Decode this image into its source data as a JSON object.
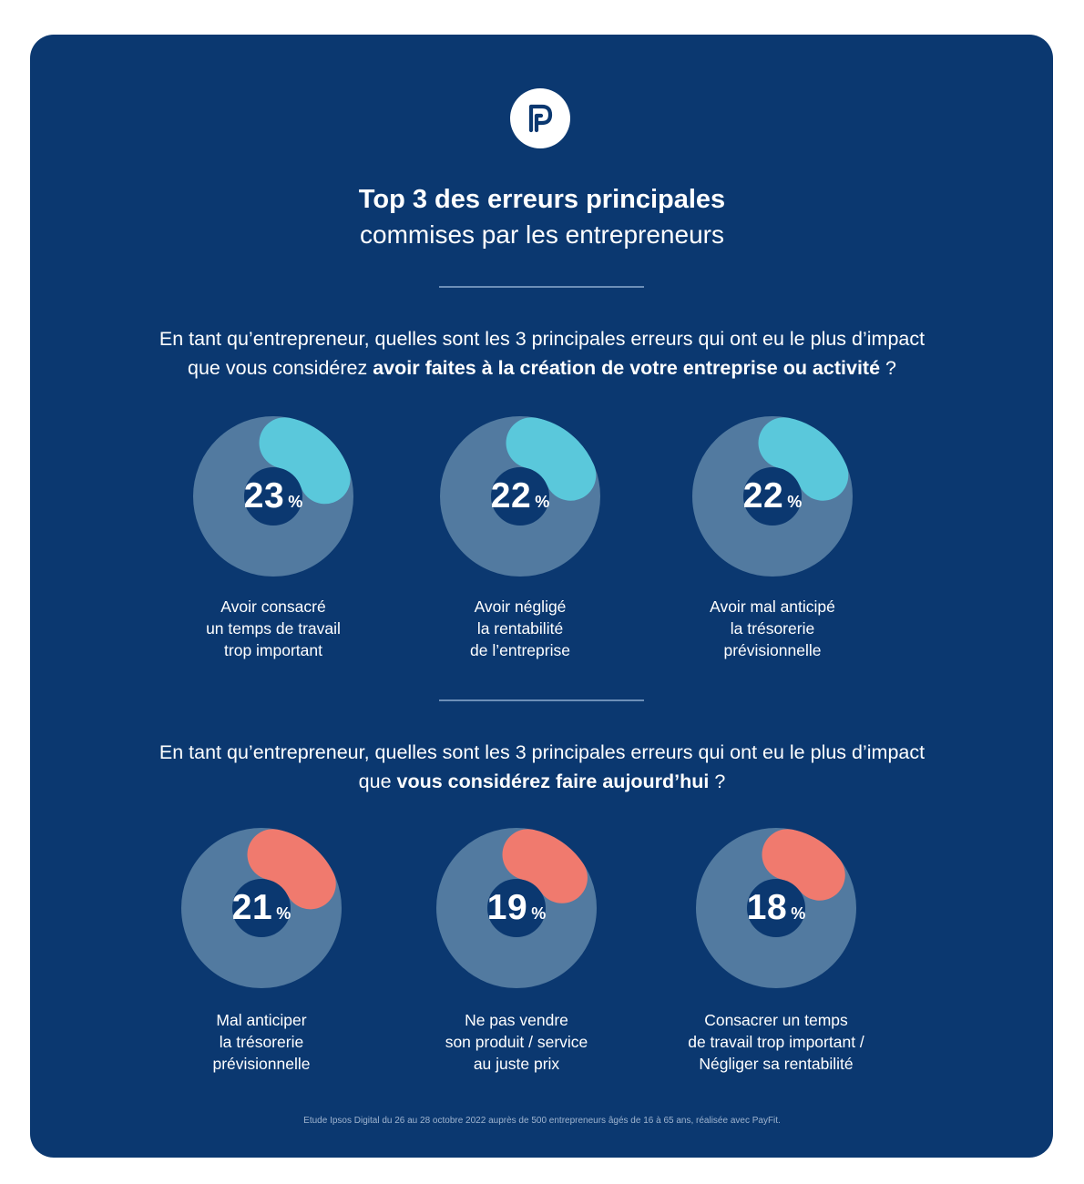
{
  "colors": {
    "background": "#0b3870",
    "ring_track": "#527aa0",
    "accent_blue": "#5ac8db",
    "accent_red": "#f07a6e",
    "divider": "#6d8fb8"
  },
  "logo": {
    "icon": "payfit-logo-icon"
  },
  "header": {
    "title_bold": "Top 3 des erreurs principales",
    "title_light": "commises par les entrepreneurs"
  },
  "section1": {
    "question_line1": "En tant qu’entrepreneur, quelles sont les 3 principales erreurs qui ont eu le plus d’impact",
    "question_line2_pre": "que vous considérez ",
    "question_line2_bold": "avoir faites à la création de votre entreprise ou activité",
    "question_line2_post": " ?"
  },
  "section2": {
    "question_line1": "En tant qu’entrepreneur, quelles sont les 3 principales erreurs qui ont eu le plus d’impact",
    "question_line2_pre": "que ",
    "question_line2_bold": "vous considérez faire aujourd’hui",
    "question_line2_post": " ?"
  },
  "chart_data": [
    {
      "type": "pie",
      "title": "",
      "color": "#5ac8db",
      "items": [
        {
          "value": 23,
          "display": "23",
          "unit": "%",
          "label_lines": [
            "Avoir consacré",
            "un temps de travail",
            "trop important"
          ]
        },
        {
          "value": 22,
          "display": "22",
          "unit": "%",
          "label_lines": [
            "Avoir négligé",
            "la rentabilité",
            "de l’entreprise"
          ]
        },
        {
          "value": 22,
          "display": "22",
          "unit": "%",
          "label_lines": [
            "Avoir mal anticipé",
            "la trésorerie",
            "prévisionnelle"
          ]
        }
      ]
    },
    {
      "type": "pie",
      "title": "",
      "color": "#f07a6e",
      "items": [
        {
          "value": 21,
          "display": "21",
          "unit": "%",
          "label_lines": [
            "Mal anticiper",
            "la trésorerie",
            "prévisionnelle"
          ]
        },
        {
          "value": 19,
          "display": "19",
          "unit": "%",
          "label_lines": [
            "Ne pas vendre",
            "son produit / service",
            "au juste prix"
          ]
        },
        {
          "value": 18,
          "display": "18",
          "unit": "%",
          "label_lines": [
            "Consacrer un temps",
            "de travail trop important /",
            "Négliger sa rentabilité"
          ]
        }
      ]
    }
  ],
  "footer": {
    "source": "Etude Ipsos Digital du 26 au 28 octobre 2022 auprès de 500 entrepreneurs âgés de 16 à 65 ans, réalisée avec PayFit."
  }
}
